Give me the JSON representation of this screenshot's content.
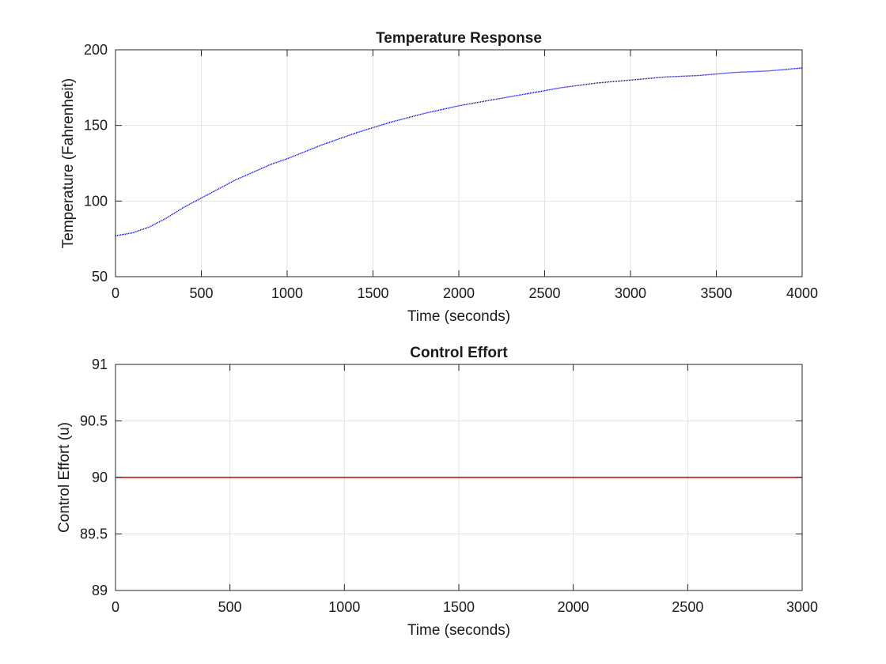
{
  "chart_data": [
    {
      "type": "line",
      "title": "Temperature Response",
      "xlabel": "Time (seconds)",
      "ylabel": "Temperature (Fahrenheit)",
      "xlim": [
        0,
        4000
      ],
      "ylim": [
        50,
        200
      ],
      "xticks": [
        0,
        500,
        1000,
        1500,
        2000,
        2500,
        3000,
        3500,
        4000
      ],
      "yticks": [
        50,
        100,
        150,
        200
      ],
      "grid": true,
      "series": [
        {
          "color": "#0000ff",
          "style": "dotted",
          "x": [
            0,
            100,
            200,
            300,
            400,
            500,
            600,
            700,
            800,
            900,
            1000,
            1200,
            1400,
            1600,
            1800,
            2000,
            2200,
            2400,
            2600,
            2800,
            3000,
            3200,
            3400,
            3600,
            3800,
            4000
          ],
          "y": [
            77,
            79,
            83,
            89,
            96,
            102,
            108,
            114,
            119,
            124,
            128,
            137,
            145,
            152,
            158,
            163,
            167,
            171,
            175,
            178,
            180,
            182,
            183,
            185,
            186,
            188
          ]
        }
      ]
    },
    {
      "type": "line",
      "title": "Control Effort",
      "xlabel": "Time (seconds)",
      "ylabel": "Control Effort (u)",
      "xlim": [
        0,
        3000
      ],
      "ylim": [
        89,
        91
      ],
      "xticks": [
        0,
        500,
        1000,
        1500,
        2000,
        2500,
        3000
      ],
      "yticks": [
        89,
        89.5,
        90,
        90.5,
        91
      ],
      "grid": true,
      "series": [
        {
          "color": "#cc0000",
          "style": "solid",
          "x": [
            0,
            3000
          ],
          "y": [
            90,
            90
          ]
        }
      ]
    }
  ]
}
